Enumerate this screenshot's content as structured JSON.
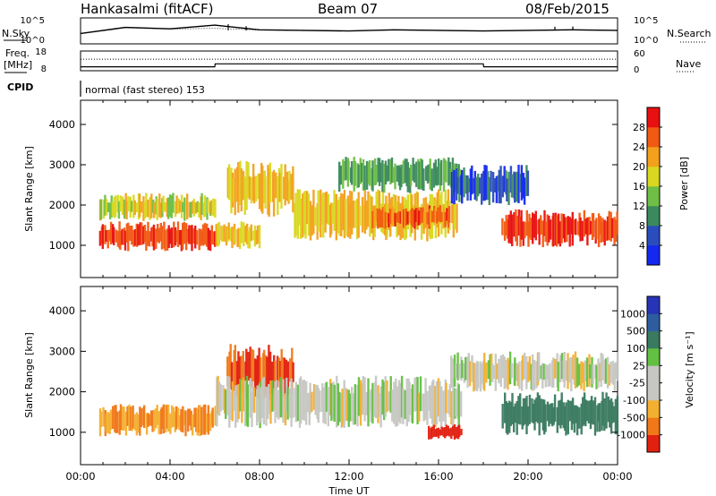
{
  "header": {
    "station": "Hankasalmi (fitACF)",
    "beam": "Beam 07",
    "date": "08/Feb/2015"
  },
  "labels": {
    "nsky": "N.Sky",
    "nsearch": "N.Search",
    "freq": "Freq.",
    "mhz": "[MHz]",
    "nave": "Nave",
    "cpid": "CPID",
    "mode": "normal (fast stereo) 153",
    "x_axis": "Time UT",
    "power_y": "Slant Range [km]",
    "vel_y": "Slant Range [km]",
    "power_cb": "Power [dB]",
    "vel_cb": "Velocity [m s⁻¹]"
  },
  "noise_axis": {
    "left": [
      "10^5",
      "10^0"
    ],
    "right": [
      "10^5",
      "10^0"
    ]
  },
  "freq_axis": {
    "left": [
      "18",
      "8"
    ],
    "right": [
      "60",
      "0"
    ]
  },
  "chart_data": [
    {
      "type": "line",
      "title": "",
      "series": [
        {
          "name": "N.Sky",
          "x": [
            "00:00",
            "02:00",
            "04:00",
            "06:00",
            "08:00",
            "10:00",
            "12:00",
            "14:00",
            "16:00",
            "18:00",
            "20:00",
            "22:00",
            "24:00"
          ],
          "values": [
            100,
            1500,
            800,
            4000,
            500,
            400,
            300,
            500,
            400,
            300,
            400,
            500,
            400
          ]
        },
        {
          "name": "N.Search",
          "x": [
            "00:00",
            "02:00",
            "04:00",
            "06:00",
            "08:00",
            "10:00",
            "12:00",
            "14:00",
            "16:00",
            "18:00",
            "20:00",
            "22:00",
            "24:00"
          ],
          "values": [
            100,
            1200,
            700,
            1000,
            450,
            350,
            300,
            450,
            350,
            300,
            350,
            450,
            350
          ]
        }
      ],
      "ylim": [
        1,
        100000
      ]
    },
    {
      "type": "line",
      "series": [
        {
          "name": "Freq.",
          "x": [
            "00:00",
            "06:00",
            "06:01",
            "18:00",
            "18:01",
            "24:00"
          ],
          "values": [
            10,
            10,
            11.5,
            11.5,
            10,
            10
          ]
        },
        {
          "name": "Nave",
          "x": [
            "00:00",
            "24:00"
          ],
          "values": [
            35,
            35
          ]
        }
      ]
    },
    {
      "type": "heatmap",
      "title": "",
      "xlabel": "Time UT",
      "ylabel": "Slant Range [km]",
      "x_ticks": [
        "00:00",
        "04:00",
        "08:00",
        "12:00",
        "16:00",
        "20:00",
        "00:00"
      ],
      "xlim": [
        0,
        24
      ],
      "y_ticks": [
        1000,
        2000,
        3000,
        4000
      ],
      "ylim": [
        200,
        4600
      ],
      "colorbar": {
        "label": "Power [dB]",
        "ticks": [
          4,
          8,
          12,
          16,
          20,
          24,
          28
        ],
        "range": [
          0,
          32
        ]
      },
      "regions": [
        {
          "t": [
            0.8,
            6.0
          ],
          "r": [
            850,
            1600
          ],
          "dB": 28
        },
        {
          "t": [
            0.8,
            6.0
          ],
          "r": [
            1600,
            2300
          ],
          "dB": 18
        },
        {
          "t": [
            6.0,
            8.0
          ],
          "r": [
            900,
            1600
          ],
          "dB": 20
        },
        {
          "t": [
            6.5,
            9.5
          ],
          "r": [
            1700,
            3100
          ],
          "dB": 20
        },
        {
          "t": [
            9.5,
            16.8
          ],
          "r": [
            1100,
            2400
          ],
          "dB": 20
        },
        {
          "t": [
            13.0,
            16.5
          ],
          "r": [
            1400,
            2000
          ],
          "dB": 26
        },
        {
          "t": [
            11.5,
            17.0
          ],
          "r": [
            2300,
            3200
          ],
          "dB": 12
        },
        {
          "t": [
            18.8,
            24.0
          ],
          "r": [
            950,
            1900
          ],
          "dB": 28
        },
        {
          "t": [
            16.5,
            20.0
          ],
          "r": [
            2000,
            3000
          ],
          "dB": 6
        }
      ]
    },
    {
      "type": "heatmap",
      "xlabel": "Time UT",
      "ylabel": "Slant Range [km]",
      "x_ticks": [
        "00:00",
        "04:00",
        "08:00",
        "12:00",
        "16:00",
        "20:00",
        "00:00"
      ],
      "xlim": [
        0,
        24
      ],
      "y_ticks": [
        1000,
        2000,
        3000,
        4000
      ],
      "ylim": [
        200,
        4600
      ],
      "colorbar": {
        "label": "Velocity [m s⁻¹]",
        "ticks": [
          1000,
          500,
          100,
          25,
          -25,
          -100,
          -500,
          -1000
        ]
      },
      "regions": [
        {
          "t": [
            0.8,
            6.0
          ],
          "r": [
            900,
            1700
          ],
          "v": -100
        },
        {
          "t": [
            6.5,
            9.5
          ],
          "r": [
            1800,
            3200
          ],
          "v": -500
        },
        {
          "t": [
            6.0,
            17.0
          ],
          "r": [
            1100,
            2400
          ],
          "v": 0
        },
        {
          "t": [
            15.5,
            17.0
          ],
          "r": [
            800,
            1200
          ],
          "v": -1000
        },
        {
          "t": [
            18.8,
            24.0
          ],
          "r": [
            900,
            2000
          ],
          "v": 300
        },
        {
          "t": [
            16.5,
            24.0
          ],
          "r": [
            2000,
            3000
          ],
          "v": 0
        }
      ]
    }
  ]
}
